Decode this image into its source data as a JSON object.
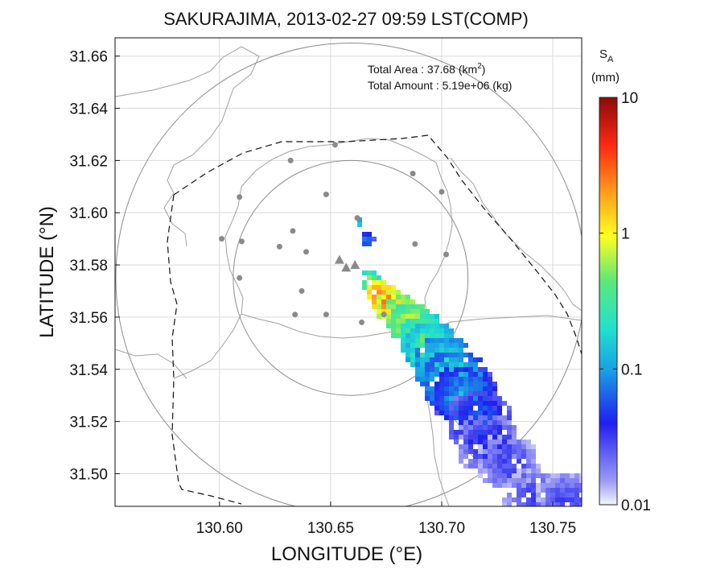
{
  "chart_data": {
    "type": "heatmap",
    "title": "SAKURAJIMA, 2013-02-27 09:59 LST(COMP)",
    "xlabel": "LONGITUDE (°E)",
    "ylabel": "LATITUDE (°N)",
    "xlim": [
      130.553,
      130.763
    ],
    "ylim": [
      31.4875,
      31.667
    ],
    "xticks": [
      "130.60",
      "130.65",
      "130.70",
      "130.75"
    ],
    "xtick_values": [
      130.6,
      130.65,
      130.7,
      130.75
    ],
    "yticks": [
      "31.50",
      "31.52",
      "31.54",
      "31.56",
      "31.58",
      "31.60",
      "31.62",
      "31.64",
      "31.66"
    ],
    "ytick_values": [
      31.5,
      31.52,
      31.54,
      31.56,
      31.58,
      31.6,
      31.62,
      31.64,
      31.66
    ],
    "grid": true,
    "annotation_lines": [
      {
        "label": "Total Area   : 37.68 (km",
        "sup": "2",
        "tail": ")"
      },
      {
        "label": "Total Amount : 5.19e+06 (kg)",
        "sup": "",
        "tail": ""
      }
    ],
    "colorbar": {
      "title": "S",
      "title_sub": "A",
      "units": "(mm)",
      "scale": "log",
      "range": [
        0.01,
        10
      ],
      "tick_labels": [
        "10",
        "1",
        "0.1",
        "0.01"
      ],
      "tick_values": [
        10,
        1,
        0.1,
        0.01
      ]
    },
    "range_circles": [
      {
        "center": [
          130.659,
          31.575
        ],
        "radius_deg_lat": 0.045
      },
      {
        "center": [
          130.659,
          31.575
        ],
        "radius_deg_lat": 0.09
      }
    ],
    "craters": [
      [
        130.654,
        31.582
      ],
      [
        130.657,
        31.579
      ],
      [
        130.661,
        31.58
      ]
    ],
    "stations": [
      [
        130.652,
        31.626
      ],
      [
        130.632,
        31.62
      ],
      [
        130.687,
        31.615
      ],
      [
        130.609,
        31.606
      ],
      [
        130.648,
        31.607
      ],
      [
        130.662,
        31.598
      ],
      [
        130.7,
        31.608
      ],
      [
        130.601,
        31.59
      ],
      [
        130.61,
        31.589
      ],
      [
        130.633,
        31.593
      ],
      [
        130.627,
        31.587
      ],
      [
        130.688,
        31.588
      ],
      [
        130.639,
        31.585
      ],
      [
        130.702,
        31.584
      ],
      [
        130.609,
        31.575
      ],
      [
        130.637,
        31.57
      ],
      [
        130.634,
        31.561
      ],
      [
        130.648,
        31.561
      ],
      [
        130.664,
        31.558
      ],
      [
        130.674,
        31.561
      ]
    ],
    "ash_points": [
      {
        "lon": 130.663,
        "lat": 31.597,
        "sa": 0.18
      },
      {
        "lon": 130.666,
        "lat": 31.591,
        "sa": 0.08
      },
      {
        "lon": 130.667,
        "lat": 31.575,
        "sa": 0.55
      },
      {
        "lon": 130.67,
        "lat": 31.571,
        "sa": 2.0
      },
      {
        "lon": 130.673,
        "lat": 31.568,
        "sa": 3.0
      },
      {
        "lon": 130.677,
        "lat": 31.565,
        "sa": 1.4
      },
      {
        "lon": 130.681,
        "lat": 31.562,
        "sa": 1.0
      },
      {
        "lon": 130.685,
        "lat": 31.558,
        "sa": 0.7
      },
      {
        "lon": 130.69,
        "lat": 31.553,
        "sa": 0.45
      },
      {
        "lon": 130.695,
        "lat": 31.548,
        "sa": 0.3
      },
      {
        "lon": 130.7,
        "lat": 31.542,
        "sa": 0.2
      },
      {
        "lon": 130.705,
        "lat": 31.537,
        "sa": 0.15
      },
      {
        "lon": 130.71,
        "lat": 31.53,
        "sa": 0.09
      },
      {
        "lon": 130.715,
        "lat": 31.522,
        "sa": 0.06
      },
      {
        "lon": 130.72,
        "lat": 31.513,
        "sa": 0.04
      },
      {
        "lon": 130.728,
        "lat": 31.505,
        "sa": 0.03
      },
      {
        "lon": 130.74,
        "lat": 31.492,
        "sa": 0.03
      },
      {
        "lon": 130.755,
        "lat": 31.49,
        "sa": 0.03
      }
    ]
  }
}
